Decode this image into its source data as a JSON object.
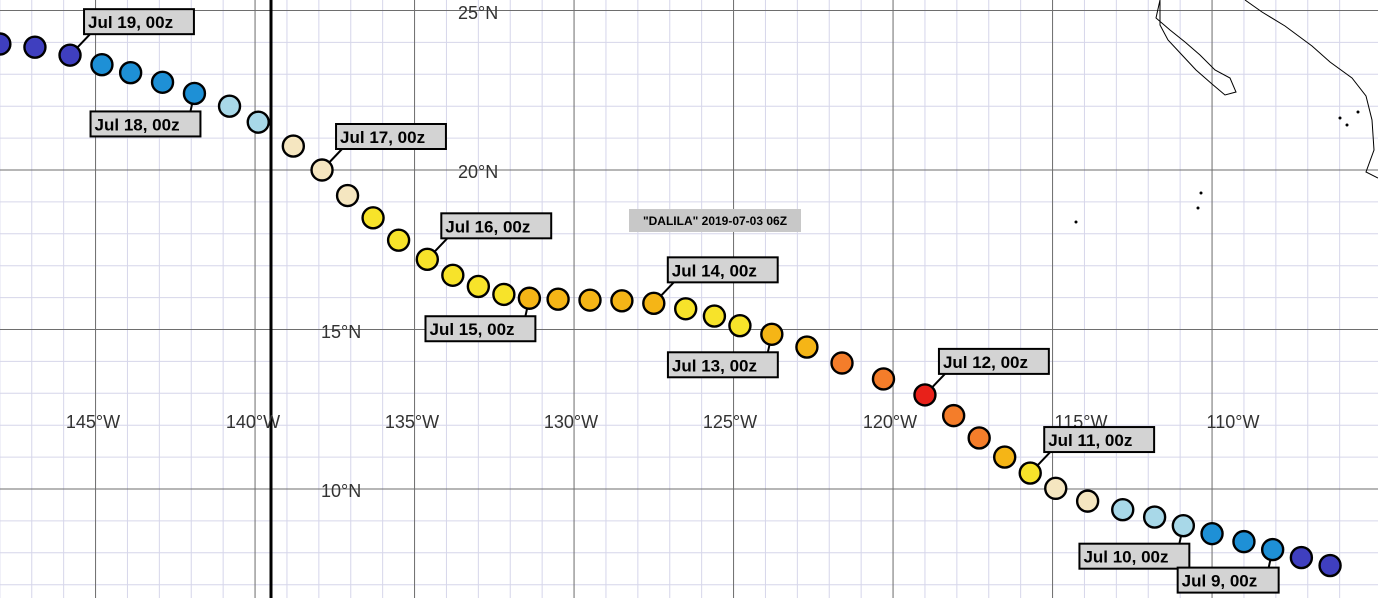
{
  "storm_label": "\"DALILA\" 2019-07-03 06Z",
  "lon_labels": [
    "145°W",
    "140°W",
    "135°W",
    "130°W",
    "125°W",
    "120°W",
    "115°W",
    "110°W"
  ],
  "lat_labels": [
    "25°N",
    "20°N",
    "15°N",
    "10°N"
  ],
  "colors": {
    "navy": "#3f3fbf",
    "blue": "#1e90d6",
    "lightblue": "#a8d8e8",
    "cream": "#f5e6c0",
    "yellow": "#f7e32a",
    "gold": "#f5b516",
    "orange": "#f47d2a",
    "red": "#e8211a"
  },
  "track": [
    {
      "lon": -148.0,
      "lat": 23.95,
      "c": "navy"
    },
    {
      "lon": -146.9,
      "lat": 23.85,
      "c": "navy"
    },
    {
      "lon": -145.8,
      "lat": 23.6,
      "c": "navy"
    },
    {
      "lon": -144.8,
      "lat": 23.3,
      "c": "blue"
    },
    {
      "lon": -143.9,
      "lat": 23.05,
      "c": "blue"
    },
    {
      "lon": -142.9,
      "lat": 22.75,
      "c": "blue"
    },
    {
      "lon": -141.9,
      "lat": 22.4,
      "c": "blue"
    },
    {
      "lon": -140.8,
      "lat": 22.0,
      "c": "lightblue"
    },
    {
      "lon": -139.9,
      "lat": 21.5,
      "c": "lightblue"
    },
    {
      "lon": -138.8,
      "lat": 20.75,
      "c": "cream"
    },
    {
      "lon": -137.9,
      "lat": 20.0,
      "c": "cream"
    },
    {
      "lon": -137.1,
      "lat": 19.2,
      "c": "cream"
    },
    {
      "lon": -136.3,
      "lat": 18.5,
      "c": "yellow"
    },
    {
      "lon": -135.5,
      "lat": 17.8,
      "c": "yellow"
    },
    {
      "lon": -134.6,
      "lat": 17.2,
      "c": "yellow"
    },
    {
      "lon": -133.8,
      "lat": 16.7,
      "c": "yellow"
    },
    {
      "lon": -133.0,
      "lat": 16.35,
      "c": "yellow"
    },
    {
      "lon": -132.2,
      "lat": 16.1,
      "c": "yellow"
    },
    {
      "lon": -131.4,
      "lat": 15.98,
      "c": "gold"
    },
    {
      "lon": -130.5,
      "lat": 15.95,
      "c": "gold"
    },
    {
      "lon": -129.5,
      "lat": 15.92,
      "c": "gold"
    },
    {
      "lon": -128.5,
      "lat": 15.9,
      "c": "gold"
    },
    {
      "lon": -127.5,
      "lat": 15.82,
      "c": "gold"
    },
    {
      "lon": -126.5,
      "lat": 15.65,
      "c": "yellow"
    },
    {
      "lon": -125.6,
      "lat": 15.42,
      "c": "yellow"
    },
    {
      "lon": -124.8,
      "lat": 15.12,
      "c": "yellow"
    },
    {
      "lon": -123.8,
      "lat": 14.85,
      "c": "gold"
    },
    {
      "lon": -122.7,
      "lat": 14.45,
      "c": "gold"
    },
    {
      "lon": -121.6,
      "lat": 13.95,
      "c": "orange"
    },
    {
      "lon": -120.3,
      "lat": 13.45,
      "c": "orange"
    },
    {
      "lon": -119.0,
      "lat": 12.95,
      "c": "red"
    },
    {
      "lon": -118.1,
      "lat": 12.3,
      "c": "orange"
    },
    {
      "lon": -117.3,
      "lat": 11.6,
      "c": "orange"
    },
    {
      "lon": -116.5,
      "lat": 11.0,
      "c": "gold"
    },
    {
      "lon": -115.7,
      "lat": 10.5,
      "c": "yellow"
    },
    {
      "lon": -114.9,
      "lat": 10.02,
      "c": "cream"
    },
    {
      "lon": -113.9,
      "lat": 9.62,
      "c": "cream"
    },
    {
      "lon": -112.8,
      "lat": 9.35,
      "c": "lightblue"
    },
    {
      "lon": -111.8,
      "lat": 9.12,
      "c": "lightblue"
    },
    {
      "lon": -110.9,
      "lat": 8.85,
      "c": "lightblue"
    },
    {
      "lon": -110.0,
      "lat": 8.6,
      "c": "blue"
    },
    {
      "lon": -109.0,
      "lat": 8.35,
      "c": "blue"
    },
    {
      "lon": -108.1,
      "lat": 8.1,
      "c": "blue"
    },
    {
      "lon": -107.2,
      "lat": 7.85,
      "c": "navy"
    },
    {
      "lon": -106.3,
      "lat": 7.6,
      "c": "navy"
    }
  ],
  "date_labels": [
    {
      "text": "Jul 19, 00z",
      "lon": -145.8,
      "lat": 23.6,
      "dir": "up"
    },
    {
      "text": "Jul 18, 00z",
      "lon": -141.9,
      "lat": 22.4,
      "dir": "down"
    },
    {
      "text": "Jul 17, 00z",
      "lon": -137.9,
      "lat": 20.0,
      "dir": "up"
    },
    {
      "text": "Jul 16, 00z",
      "lon": -134.6,
      "lat": 17.2,
      "dir": "up"
    },
    {
      "text": "Jul 15, 00z",
      "lon": -131.4,
      "lat": 15.98,
      "dir": "down"
    },
    {
      "text": "Jul 14, 00z",
      "lon": -127.5,
      "lat": 15.82,
      "dir": "up"
    },
    {
      "text": "Jul 13, 00z",
      "lon": -123.8,
      "lat": 14.85,
      "dir": "down"
    },
    {
      "text": "Jul 12, 00z",
      "lon": -119.0,
      "lat": 12.95,
      "dir": "up"
    },
    {
      "text": "Jul 11, 00z",
      "lon": -115.7,
      "lat": 10.5,
      "dir": "up"
    },
    {
      "text": "Jul 10, 00z",
      "lon": -110.9,
      "lat": 8.85,
      "dir": "down"
    },
    {
      "text": "Jul 9, 00z",
      "lon": -108.1,
      "lat": 8.1,
      "dir": "down"
    }
  ]
}
